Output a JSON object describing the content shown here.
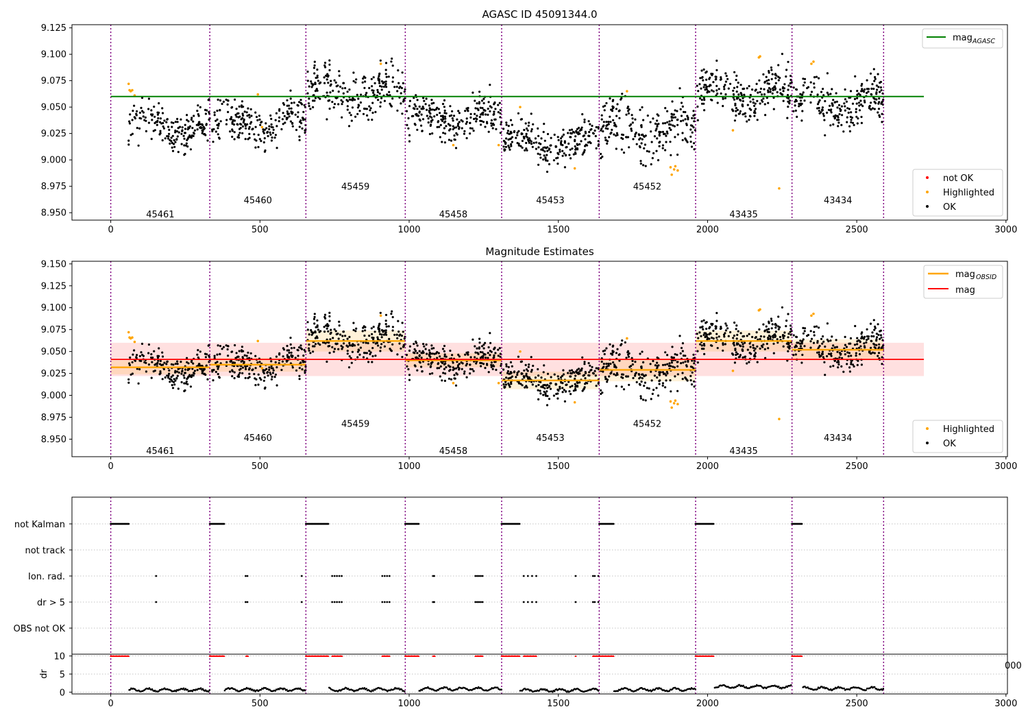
{
  "chart_data": [
    {
      "type": "scatter",
      "title": "AGASC ID 45091344.0",
      "xlabel": "",
      "ylabel": "",
      "xlim": [
        -130,
        3005
      ],
      "ylim": [
        8.943,
        9.128
      ],
      "x_ticks": [
        0,
        500,
        1000,
        1500,
        2000,
        2500,
        3000
      ],
      "y_ticks": [
        8.95,
        8.975,
        9.0,
        9.025,
        9.05,
        9.075,
        9.1,
        9.125
      ],
      "obsid_boundaries": [
        0,
        332,
        654,
        987,
        1310,
        1637,
        1960,
        2283,
        2590
      ],
      "obsid_labels": [
        {
          "x": 166,
          "y": 8.949,
          "text": "45461"
        },
        {
          "x": 493,
          "y": 8.962,
          "text": "45460"
        },
        {
          "x": 820,
          "y": 8.975,
          "text": "45459"
        },
        {
          "x": 1148,
          "y": 8.949,
          "text": "45458"
        },
        {
          "x": 1473,
          "y": 8.962,
          "text": "45453"
        },
        {
          "x": 1798,
          "y": 8.975,
          "text": "45452"
        },
        {
          "x": 2121,
          "y": 8.949,
          "text": "43435"
        },
        {
          "x": 2437,
          "y": 8.962,
          "text": "43434"
        }
      ],
      "reference_lines": [
        {
          "name": "mag$_{AGASC}$",
          "y": 9.06,
          "x": [
            0,
            2725
          ],
          "color": "#008000"
        }
      ],
      "series": [
        {
          "name": "not OK",
          "color": "#ff0000",
          "points": []
        },
        {
          "name": "Highlighted",
          "color": "#ffa500",
          "points": [
            [
              60,
              9.072
            ],
            [
              63,
              9.066
            ],
            [
              67,
              9.065
            ],
            [
              72,
              9.066
            ],
            [
              80,
              9.061
            ],
            [
              493,
              9.062
            ],
            [
              507,
              9.031
            ],
            [
              905,
              9.091
            ],
            [
              1148,
              9.014
            ],
            [
              1372,
              9.05
            ],
            [
              1300,
              9.014
            ],
            [
              1555,
              8.992
            ],
            [
              1730,
              9.065
            ],
            [
              1876,
              8.993
            ],
            [
              1880,
              8.986
            ],
            [
              1888,
              8.991
            ],
            [
              1892,
              8.994
            ],
            [
              1900,
              8.99
            ],
            [
              2085,
              9.028
            ],
            [
              2172,
              9.097
            ],
            [
              2176,
              9.098
            ],
            [
              2240,
              8.973
            ],
            [
              2348,
              9.091
            ],
            [
              2355,
              9.093
            ]
          ]
        },
        {
          "name": "OK",
          "color": "#000000",
          "segments": [
            {
              "x": [
                60,
                332
              ],
              "center": 9.032,
              "spread": 0.022,
              "count": 190,
              "seed": 11
            },
            {
              "x": [
                340,
                654
              ],
              "center": 9.035,
              "spread": 0.02,
              "count": 220,
              "seed": 12
            },
            {
              "x": [
                660,
                987
              ],
              "center": 9.062,
              "spread": 0.024,
              "count": 230,
              "seed": 13
            },
            {
              "x": [
                992,
                1310
              ],
              "center": 9.04,
              "spread": 0.02,
              "count": 230,
              "seed": 14
            },
            {
              "x": [
                1316,
                1637
              ],
              "center": 9.017,
              "spread": 0.02,
              "count": 230,
              "seed": 15
            },
            {
              "x": [
                1642,
                1960
              ],
              "center": 9.03,
              "spread": 0.028,
              "count": 230,
              "seed": 16
            },
            {
              "x": [
                1965,
                2283
              ],
              "center": 9.062,
              "spread": 0.024,
              "count": 240,
              "seed": 17
            },
            {
              "x": [
                2288,
                2590
              ],
              "center": 9.052,
              "spread": 0.024,
              "count": 220,
              "seed": 18
            }
          ]
        }
      ],
      "legends": [
        {
          "position": "top-right",
          "entries": [
            {
              "label": "mag",
              "sub": "AGASC",
              "kind": "line",
              "color": "#008000"
            }
          ]
        },
        {
          "position": "bottom-right",
          "entries": [
            {
              "label": "not OK",
              "kind": "dot",
              "color": "#ff0000"
            },
            {
              "label": "Highlighted",
              "kind": "dot",
              "color": "#ffa500"
            },
            {
              "label": "OK",
              "kind": "dot",
              "color": "#000000"
            }
          ]
        }
      ]
    },
    {
      "type": "scatter",
      "title": "Magnitude Estimates",
      "xlabel": "",
      "ylabel": "",
      "xlim": [
        -130,
        3005
      ],
      "ylim": [
        8.93,
        9.153
      ],
      "x_ticks": [
        0,
        500,
        1000,
        1500,
        2000,
        2500,
        3000
      ],
      "y_ticks": [
        8.95,
        8.975,
        9.0,
        9.025,
        9.05,
        9.075,
        9.1,
        9.125,
        9.15
      ],
      "obsid_boundaries": [
        0,
        332,
        654,
        987,
        1310,
        1637,
        1960,
        2283,
        2590
      ],
      "obsid_labels": [
        {
          "x": 166,
          "y": 8.937,
          "text": "45461"
        },
        {
          "x": 493,
          "y": 8.952,
          "text": "45460"
        },
        {
          "x": 820,
          "y": 8.968,
          "text": "45459"
        },
        {
          "x": 1148,
          "y": 8.937,
          "text": "45458"
        },
        {
          "x": 1473,
          "y": 8.952,
          "text": "45453"
        },
        {
          "x": 1798,
          "y": 8.968,
          "text": "45452"
        },
        {
          "x": 2121,
          "y": 8.937,
          "text": "43435"
        },
        {
          "x": 2437,
          "y": 8.952,
          "text": "43434"
        }
      ],
      "mag": {
        "name": "mag",
        "y": 9.041,
        "band": [
          9.022,
          9.06
        ],
        "x": [
          0,
          2725
        ],
        "color": "#ff0000"
      },
      "mag_obsid": {
        "name": "mag$_{OBSID}$",
        "color": "#ffa500",
        "values": [
          {
            "x": [
              0,
              332
            ],
            "y": 9.032,
            "band": [
              9.024,
              9.04
            ]
          },
          {
            "x": [
              332,
              654
            ],
            "y": 9.035,
            "band": [
              9.027,
              9.043
            ]
          },
          {
            "x": [
              654,
              987
            ],
            "y": 9.062,
            "band": [
              9.05,
              9.074
            ]
          },
          {
            "x": [
              987,
              1310
            ],
            "y": 9.04,
            "band": [
              9.032,
              9.048
            ]
          },
          {
            "x": [
              1310,
              1637
            ],
            "y": 9.017,
            "band": [
              9.007,
              9.027
            ]
          },
          {
            "x": [
              1637,
              1960
            ],
            "y": 9.029,
            "band": [
              9.016,
              9.042
            ]
          },
          {
            "x": [
              1960,
              2283
            ],
            "y": 9.062,
            "band": [
              9.05,
              9.074
            ]
          },
          {
            "x": [
              2283,
              2590
            ],
            "y": 9.052,
            "band": [
              9.04,
              9.064
            ]
          }
        ]
      },
      "series": [
        {
          "name": "Highlighted",
          "color": "#ffa500",
          "ref": "same as panel 1"
        },
        {
          "name": "OK",
          "color": "#000000",
          "ref": "same as panel 1"
        }
      ],
      "legends": [
        {
          "position": "top-right",
          "entries": [
            {
              "label": "mag",
              "sub": "OBSID",
              "kind": "line",
              "color": "#ffa500"
            },
            {
              "label": "mag",
              "kind": "line",
              "color": "#ff0000"
            }
          ]
        },
        {
          "position": "bottom-right",
          "entries": [
            {
              "label": "Highlighted",
              "kind": "dot",
              "color": "#ffa500"
            },
            {
              "label": "OK",
              "kind": "dot",
              "color": "#000000"
            }
          ]
        }
      ]
    },
    {
      "type": "scatter",
      "title": "",
      "xlabel": "",
      "ylabel": "",
      "xlim": [
        -130,
        3005
      ],
      "x_ticks": [
        0,
        500,
        1000,
        1500,
        2000,
        2500,
        3000
      ],
      "category_rows": [
        "not Kalman",
        "not track",
        "Ion. rad.",
        "dr > 5",
        "OBS not OK"
      ],
      "flags": {
        "not Kalman": [
          [
            0,
            60
          ],
          [
            332,
            380
          ],
          [
            654,
            730
          ],
          [
            987,
            1032
          ],
          [
            1310,
            1370
          ],
          [
            1637,
            1685
          ],
          [
            1960,
            2022
          ],
          [
            2283,
            2318
          ]
        ],
        "not track": [],
        "Ion. rad.": [
          152,
          452,
          458,
          640,
          742,
          750,
          758,
          766,
          774,
          910,
          918,
          926,
          934,
          1080,
          1084,
          1222,
          1228,
          1234,
          1240,
          1246,
          1384,
          1398,
          1412,
          1426,
          1558,
          1616,
          1622,
          1634
        ],
        "dr > 5": [
          152,
          452,
          458,
          640,
          742,
          750,
          758,
          766,
          774,
          910,
          918,
          926,
          934,
          1080,
          1084,
          1222,
          1228,
          1234,
          1240,
          1246,
          1384,
          1398,
          1412,
          1426,
          1558,
          1616,
          1622,
          1634
        ],
        "OBS not OK": []
      }
    },
    {
      "type": "scatter",
      "title": "",
      "xlabel": "",
      "ylabel": "dr",
      "xlim": [
        -130,
        3005
      ],
      "ylim": [
        -0.5,
        10.5
      ],
      "y_ticks": [
        0,
        5,
        10
      ],
      "x_ticks": [
        0,
        500,
        1000,
        1500,
        2000,
        2500,
        3000
      ],
      "clipped_tick_label": "000",
      "dr_high_value": 10,
      "dr_high_ranges": [
        [
          0,
          60
        ],
        [
          332,
          380
        ],
        [
          454,
          460
        ],
        [
          654,
          730
        ],
        [
          742,
          776
        ],
        [
          910,
          936
        ],
        [
          987,
          1032
        ],
        [
          1080,
          1086
        ],
        [
          1222,
          1248
        ],
        [
          1310,
          1370
        ],
        [
          1384,
          1428
        ],
        [
          1558,
          1560
        ],
        [
          1616,
          1685
        ],
        [
          1960,
          2022
        ],
        [
          2283,
          2318
        ]
      ],
      "dr_segments": [
        {
          "x": [
            60,
            332
          ],
          "level": 0.6
        },
        {
          "x": [
            380,
            654
          ],
          "level": 0.7
        },
        {
          "x": [
            730,
            987
          ],
          "level": 0.7
        },
        {
          "x": [
            1032,
            1310
          ],
          "level": 0.9
        },
        {
          "x": [
            1370,
            1637
          ],
          "level": 0.5
        },
        {
          "x": [
            1685,
            1960
          ],
          "level": 0.7
        },
        {
          "x": [
            2022,
            2283
          ],
          "level": 1.5
        },
        {
          "x": [
            2318,
            2590
          ],
          "level": 1.0
        }
      ]
    }
  ]
}
